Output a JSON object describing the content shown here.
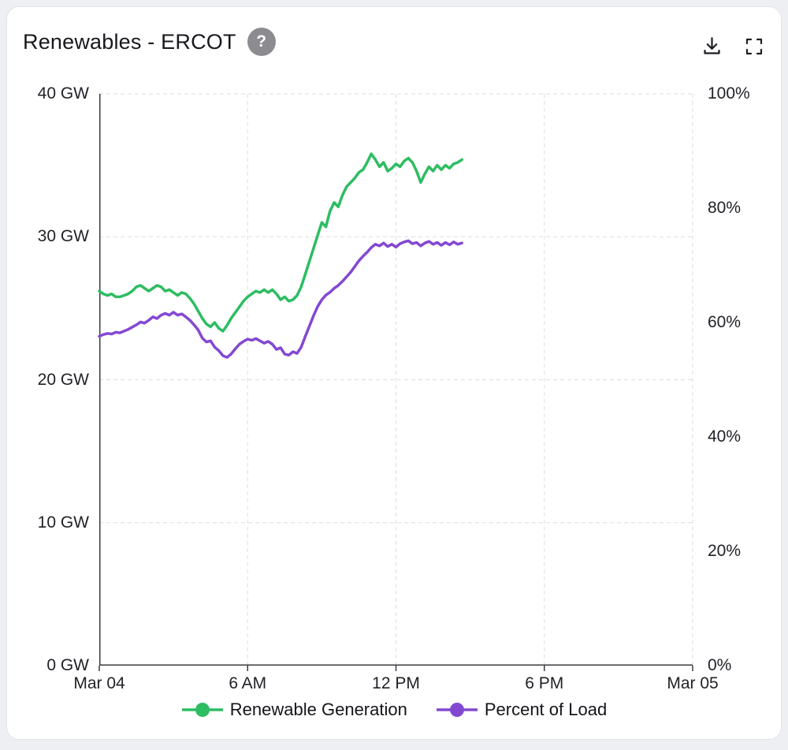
{
  "page": {
    "background_color": "#edeff2"
  },
  "card": {
    "title": "Renewables - ERCOT",
    "help_glyph": "?"
  },
  "chart_data": {
    "type": "line",
    "title": "Renewables - ERCOT",
    "legend_position": "bottom",
    "grid": "dashed",
    "style": {
      "grid_color": "#dcdde1",
      "axis_color": "#3b3b41"
    },
    "x_axis": {
      "tick_labels": [
        "Mar 04",
        "6 AM",
        "12 PM",
        "6 PM",
        "Mar 05"
      ],
      "tick_hours": [
        0,
        6,
        12,
        18,
        24
      ],
      "range_hours": [
        0,
        24
      ]
    },
    "y_axis_left": {
      "unit": "GW",
      "tick_labels": [
        "0 GW",
        "10 GW",
        "20 GW",
        "30 GW",
        "40 GW"
      ],
      "tick_values": [
        0,
        10,
        20,
        30,
        40
      ],
      "range": [
        0,
        40
      ]
    },
    "y_axis_right": {
      "unit": "%",
      "tick_labels": [
        "0%",
        "20%",
        "40%",
        "60%",
        "80%",
        "100%"
      ],
      "tick_values": [
        0,
        20,
        40,
        60,
        80,
        100
      ],
      "range": [
        0,
        100
      ]
    },
    "sample_interval_minutes": 10,
    "series": [
      {
        "name": "Renewable Generation",
        "unit": "GW",
        "axis": "left",
        "color": "#2dbd62",
        "start_hour": 0,
        "values": [
          26.2,
          26.0,
          25.9,
          26.0,
          25.8,
          25.8,
          25.9,
          26.0,
          26.2,
          26.5,
          26.6,
          26.4,
          26.2,
          26.4,
          26.6,
          26.5,
          26.2,
          26.3,
          26.1,
          25.9,
          26.1,
          26.0,
          25.7,
          25.3,
          24.8,
          24.3,
          23.9,
          23.7,
          24.0,
          23.6,
          23.4,
          23.8,
          24.3,
          24.7,
          25.1,
          25.5,
          25.8,
          26.0,
          26.2,
          26.1,
          26.3,
          26.1,
          26.3,
          26.0,
          25.6,
          25.8,
          25.5,
          25.6,
          25.9,
          26.5,
          27.4,
          28.3,
          29.2,
          30.1,
          31.0,
          30.7,
          31.8,
          32.4,
          32.1,
          32.9,
          33.5,
          33.8,
          34.1,
          34.5,
          34.7,
          35.2,
          35.8,
          35.4,
          34.9,
          35.2,
          34.6,
          34.8,
          35.1,
          34.9,
          35.3,
          35.5,
          35.2,
          34.6,
          33.8,
          34.4,
          34.9,
          34.6,
          35.0,
          34.7,
          35.0,
          34.8,
          35.1,
          35.2,
          35.4
        ]
      },
      {
        "name": "Percent of Load",
        "unit": "%",
        "axis": "right",
        "color": "#8348d2",
        "start_hour": 0,
        "values": [
          57.6,
          57.9,
          58.1,
          58.0,
          58.3,
          58.2,
          58.5,
          58.8,
          59.2,
          59.6,
          60.1,
          59.9,
          60.4,
          61.0,
          60.7,
          61.3,
          61.6,
          61.3,
          61.8,
          61.3,
          61.5,
          61.0,
          60.4,
          59.6,
          58.7,
          57.3,
          56.6,
          56.8,
          55.7,
          55.1,
          54.2,
          53.9,
          54.5,
          55.4,
          56.2,
          56.7,
          57.1,
          56.9,
          57.2,
          56.8,
          56.4,
          56.7,
          56.2,
          55.3,
          55.6,
          54.5,
          54.3,
          54.9,
          54.6,
          55.7,
          57.6,
          59.4,
          61.2,
          62.8,
          64.0,
          64.8,
          65.3,
          66.0,
          66.5,
          67.2,
          68.0,
          68.8,
          69.8,
          70.8,
          71.6,
          72.3,
          73.1,
          73.7,
          73.4,
          73.9,
          73.3,
          73.7,
          73.2,
          73.8,
          74.1,
          74.3,
          73.8,
          74.0,
          73.4,
          73.9,
          74.2,
          73.7,
          74.0,
          73.5,
          74.0,
          73.6,
          74.1,
          73.7,
          73.9
        ]
      }
    ]
  }
}
